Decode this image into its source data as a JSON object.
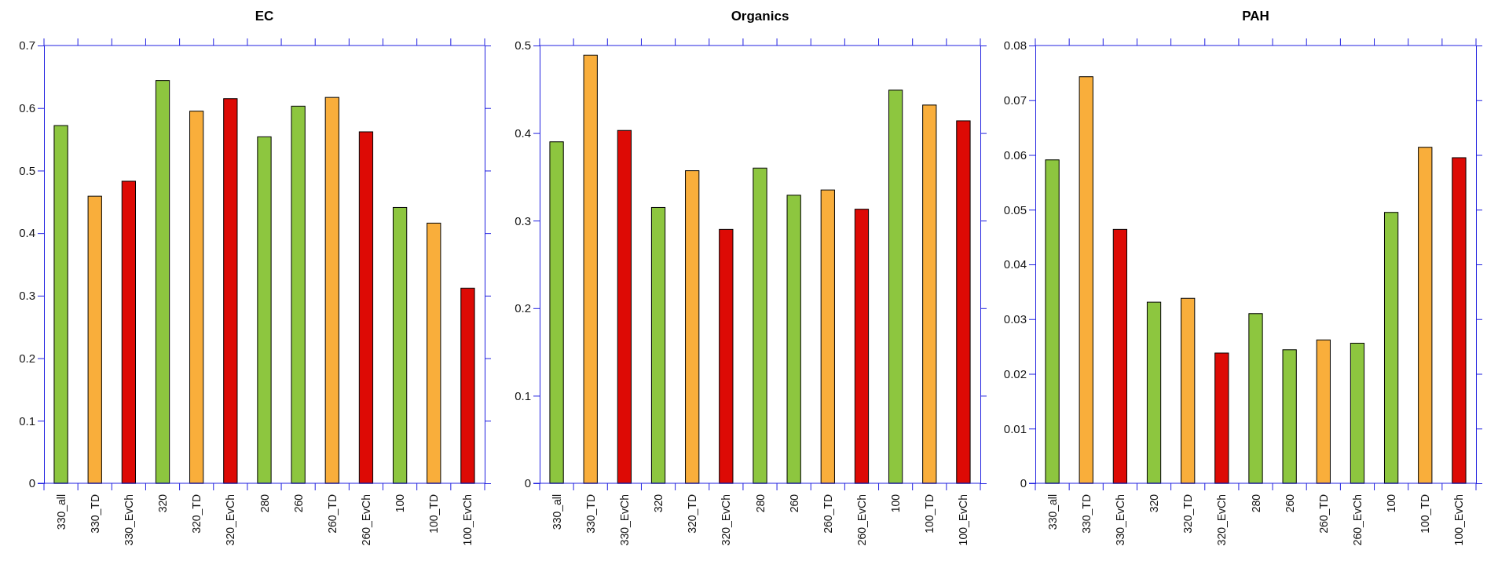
{
  "chart_data": [
    {
      "type": "bar",
      "title": "EC",
      "categories": [
        "330_all",
        "330_TD",
        "330_EvCh",
        "320",
        "320_TD",
        "320_EvCh",
        "280",
        "260",
        "260_TD",
        "260_EvCh",
        "100",
        "100_TD",
        "100_EvCh"
      ],
      "values": [
        0.572,
        0.459,
        0.483,
        0.644,
        0.595,
        0.615,
        0.554,
        0.603,
        0.617,
        0.562,
        0.441,
        0.416,
        0.312
      ],
      "colors": [
        "#8dc63f",
        "#f9ae3b",
        "#dd0a05",
        "#8dc63f",
        "#f9ae3b",
        "#dd0a05",
        "#8dc63f",
        "#8dc63f",
        "#f9ae3b",
        "#dd0a05",
        "#8dc63f",
        "#f9ae3b",
        "#dd0a05"
      ],
      "ylim": [
        0,
        0.7
      ],
      "yticks": [
        0,
        0.1,
        0.2,
        0.3,
        0.4,
        0.5,
        0.6,
        0.7
      ]
    },
    {
      "type": "bar",
      "title": "Organics",
      "categories": [
        "330_all",
        "330_TD",
        "330_EvCh",
        "320",
        "320_TD",
        "320_EvCh",
        "280",
        "260",
        "260_TD",
        "260_EvCh",
        "100",
        "100_TD",
        "100_EvCh"
      ],
      "values": [
        0.39,
        0.489,
        0.403,
        0.315,
        0.357,
        0.29,
        0.36,
        0.329,
        0.335,
        0.313,
        0.449,
        0.432,
        0.414
      ],
      "colors": [
        "#8dc63f",
        "#f9ae3b",
        "#dd0a05",
        "#8dc63f",
        "#f9ae3b",
        "#dd0a05",
        "#8dc63f",
        "#8dc63f",
        "#f9ae3b",
        "#dd0a05",
        "#8dc63f",
        "#f9ae3b",
        "#dd0a05"
      ],
      "ylim": [
        0,
        0.5
      ],
      "yticks": [
        0,
        0.1,
        0.2,
        0.3,
        0.4,
        0.5
      ]
    },
    {
      "type": "bar",
      "title": "PAH",
      "categories": [
        "330_all",
        "330_TD",
        "330_EvCh",
        "320",
        "320_TD",
        "320_EvCh",
        "280",
        "260",
        "260_TD",
        "260_EvCh",
        "100",
        "100_TD",
        "100_EvCh"
      ],
      "values": [
        0.0591,
        0.0743,
        0.0464,
        0.0331,
        0.0338,
        0.0238,
        0.031,
        0.0244,
        0.0262,
        0.0256,
        0.0495,
        0.0614,
        0.0595
      ],
      "colors": [
        "#8dc63f",
        "#f9ae3b",
        "#dd0a05",
        "#8dc63f",
        "#f9ae3b",
        "#dd0a05",
        "#8dc63f",
        "#8dc63f",
        "#f9ae3b",
        "#8dc63f",
        "#8dc63f",
        "#f9ae3b",
        "#dd0a05"
      ],
      "ylim": [
        0,
        0.08
      ],
      "yticks": [
        0,
        0.01,
        0.02,
        0.03,
        0.04,
        0.05,
        0.06,
        0.07,
        0.08
      ]
    }
  ]
}
